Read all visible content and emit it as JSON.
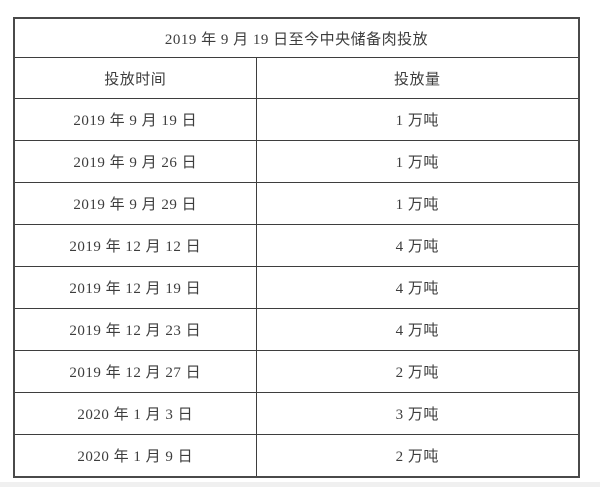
{
  "table": {
    "title": "2019 年 9 月 19 日至今中央储备肉投放",
    "columns": [
      "投放时间",
      "投放量"
    ],
    "rows": [
      {
        "date": "2019 年 9 月 19 日",
        "amount": "1 万吨"
      },
      {
        "date": "2019 年 9 月 26 日",
        "amount": "1 万吨"
      },
      {
        "date": "2019 年 9 月 29 日",
        "amount": "1 万吨"
      },
      {
        "date": "2019 年 12 月 12 日",
        "amount": "4 万吨"
      },
      {
        "date": "2019 年 12 月 19 日",
        "amount": "4 万吨"
      },
      {
        "date": "2019 年 12 月 23 日",
        "amount": "4 万吨"
      },
      {
        "date": "2019 年 12 月 27 日",
        "amount": "2 万吨"
      },
      {
        "date": "2020 年 1 月 3 日",
        "amount": "3 万吨"
      },
      {
        "date": "2020 年 1 月 9 日",
        "amount": "2 万吨"
      }
    ],
    "colors": {
      "border": "#3e3e3e",
      "outer_border": "#4a4a4a",
      "text": "#3d3d3d",
      "background": "#ffffff"
    }
  },
  "chart_data": {
    "type": "table",
    "title": "2019 年 9 月 19 日至今中央储备肉投放",
    "columns": [
      "投放时间",
      "投放量"
    ],
    "rows": [
      [
        "2019 年 9 月 19 日",
        "1 万吨"
      ],
      [
        "2019 年 9 月 26 日",
        "1 万吨"
      ],
      [
        "2019 年 9 月 29 日",
        "1 万吨"
      ],
      [
        "2019 年 12 月 12 日",
        "4 万吨"
      ],
      [
        "2019 年 12 月 19 日",
        "4 万吨"
      ],
      [
        "2019 年 12 月 23 日",
        "4 万吨"
      ],
      [
        "2019 年 12 月 27 日",
        "2 万吨"
      ],
      [
        "2020 年 1 月 3 日",
        "3 万吨"
      ],
      [
        "2020 年 1 月 9 日",
        "2 万吨"
      ]
    ],
    "values_wan_tons": [
      1,
      1,
      1,
      4,
      4,
      4,
      2,
      3,
      2
    ],
    "unit": "万吨"
  }
}
